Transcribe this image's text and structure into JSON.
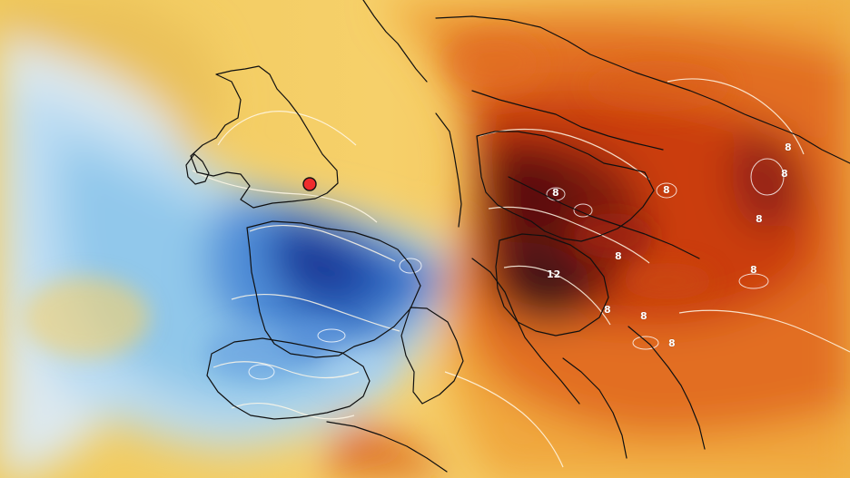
{
  "map": {
    "type": "temperature-anomaly-map",
    "visible_labels": [
      "12",
      "8"
    ],
    "highlight_marker": "london-marker",
    "colors": {
      "sea_pale": "#f5d36c",
      "cold_light": "#dbeaf6",
      "cold_mid": "#8ec6ea",
      "cold_deep": "#3c74c8",
      "cold_core": "#1a3d9e",
      "warm_light": "#f6bb56",
      "warm_mid": "#ec7a20",
      "warm_deep": "#bf2f10",
      "warm_core": "#5d120d",
      "warm_max": "#2d1315",
      "marker": "#ef2d2d"
    }
  }
}
